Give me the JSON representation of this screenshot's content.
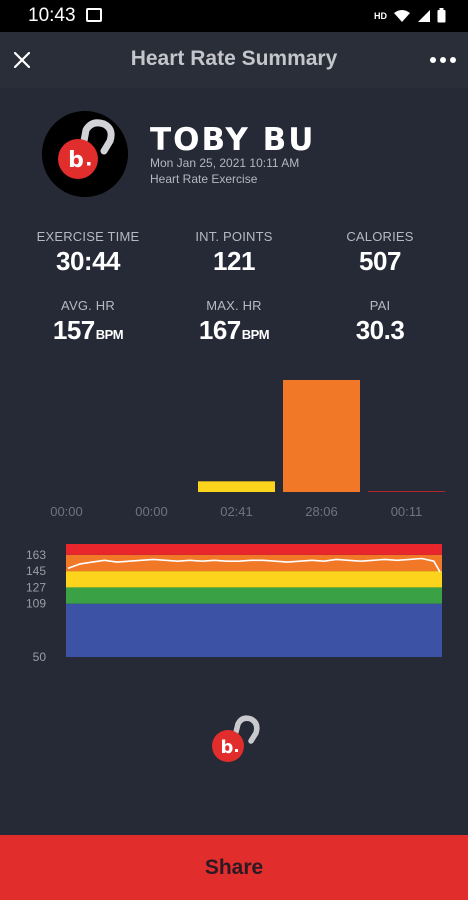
{
  "status_bar": {
    "time": "10:43",
    "network_label": "HD"
  },
  "header": {
    "title": "Heart Rate Summary"
  },
  "profile": {
    "name": "TOBY BU",
    "datetime": "Mon Jan 25, 2021 10:11 AM",
    "activity": "Heart Rate Exercise"
  },
  "stats": {
    "exercise_time": {
      "label": "EXERCISE TIME",
      "value": "30:44"
    },
    "int_points": {
      "label": "INT. POINTS",
      "value": "121"
    },
    "calories": {
      "label": "CALORIES",
      "value": "507"
    },
    "avg_hr": {
      "label": "AVG. HR",
      "value": "157",
      "unit": "BPM"
    },
    "max_hr": {
      "label": "MAX. HR",
      "value": "167",
      "unit": "BPM"
    },
    "pai": {
      "label": "PAI",
      "value": "30.3"
    }
  },
  "colors": {
    "zone_red": "#e8262b",
    "zone_orange": "#f07827",
    "zone_yellow": "#fcd41c",
    "zone_green": "#3aa245",
    "zone_blue": "#3c52a4",
    "share_red": "#e12d2b"
  },
  "chart_data": [
    {
      "type": "bar",
      "categories": [
        "00:00",
        "00:00",
        "02:41",
        "28:06",
        "00:11"
      ],
      "values": [
        0,
        0,
        2.68,
        28.1,
        0.18
      ],
      "colors": [
        "#3c52a4",
        "#3aa245",
        "#fcd41c",
        "#f07827",
        "#e8262b"
      ],
      "ylim": [
        0,
        28.1
      ]
    },
    {
      "type": "area",
      "y_ticks": [
        163,
        145,
        127,
        109,
        50
      ],
      "ylim": [
        50,
        175
      ],
      "zones": [
        {
          "from": 50,
          "to": 109,
          "color": "#3c52a4"
        },
        {
          "from": 109,
          "to": 127,
          "color": "#3aa245"
        },
        {
          "from": 127,
          "to": 145,
          "color": "#fcd41c"
        },
        {
          "from": 145,
          "to": 163,
          "color": "#f07827"
        },
        {
          "from": 163,
          "to": 175,
          "color": "#e8262b"
        }
      ],
      "series": [
        {
          "x": [
            0,
            1,
            2,
            3,
            4,
            5,
            6,
            7,
            8,
            9,
            10,
            11,
            12,
            13,
            14,
            15,
            16,
            17,
            18,
            19,
            20,
            21,
            22,
            23,
            24,
            25,
            26,
            27,
            28,
            29,
            30,
            30.5
          ],
          "values": [
            148,
            153,
            155,
            157,
            155,
            156,
            157,
            158,
            157,
            156,
            157,
            156,
            157,
            156,
            156,
            157,
            157,
            156,
            155,
            156,
            157,
            156,
            158,
            157,
            156,
            157,
            158,
            157,
            158,
            159,
            156,
            144
          ]
        }
      ]
    }
  ]
}
